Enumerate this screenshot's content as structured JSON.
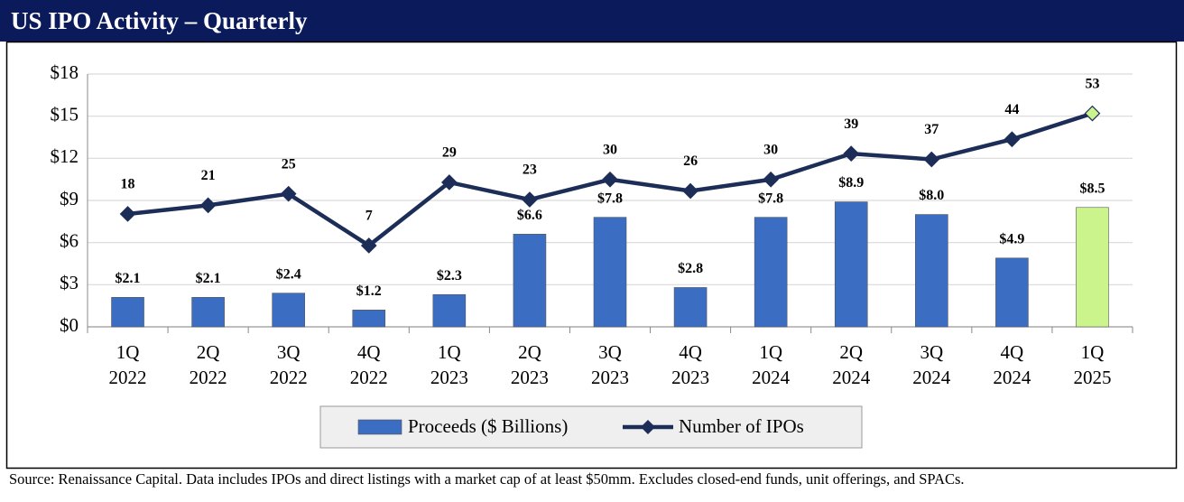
{
  "chart_data": {
    "type": "bar_line",
    "title": "US IPO Activity – Quarterly",
    "source": "Source: Renaissance Capital. Data includes IPOs and direct listings with a market cap of at least $50mm. Excludes closed-end funds, unit offerings, and SPACs.",
    "categories": [
      "1Q 2022",
      "2Q 2022",
      "3Q 2022",
      "4Q 2022",
      "1Q 2023",
      "2Q 2023",
      "3Q 2023",
      "4Q 2023",
      "1Q 2024",
      "2Q 2024",
      "3Q 2024",
      "4Q 2024",
      "1Q 2025"
    ],
    "ylim": [
      0,
      18
    ],
    "yticks": [
      {
        "value": 0,
        "label": "$0"
      },
      {
        "value": 3,
        "label": "$3"
      },
      {
        "value": 6,
        "label": "$6"
      },
      {
        "value": 9,
        "label": "$9"
      },
      {
        "value": 12,
        "label": "$12"
      },
      {
        "value": 15,
        "label": "$15"
      },
      {
        "value": 18,
        "label": "$18"
      }
    ],
    "y2lim": [
      -21.3,
      66.7
    ],
    "grid": true,
    "series": [
      {
        "name": "Proceeds ($ Billions)",
        "type": "bar",
        "color": "#3b6ec2",
        "colors": [
          "#3b6ec2",
          "#3b6ec2",
          "#3b6ec2",
          "#3b6ec2",
          "#3b6ec2",
          "#3b6ec2",
          "#3b6ec2",
          "#3b6ec2",
          "#3b6ec2",
          "#3b6ec2",
          "#3b6ec2",
          "#3b6ec2",
          "#ccf48c"
        ],
        "values": [
          2.1,
          2.1,
          2.4,
          1.2,
          2.3,
          6.6,
          7.8,
          2.8,
          7.8,
          8.9,
          8.0,
          4.9,
          8.5
        ],
        "value_labels": [
          "$2.1",
          "$2.1",
          "$2.4",
          "$1.2",
          "$2.3",
          "$6.6",
          "$7.8",
          "$2.8",
          "$7.8",
          "$8.9",
          "$8.0",
          "$4.9",
          "$8.5"
        ]
      },
      {
        "name": "Number of IPOs",
        "type": "line",
        "axis": "y2",
        "color": "#1c2d57",
        "marker_colors": [
          "#1c2d57",
          "#1c2d57",
          "#1c2d57",
          "#1c2d57",
          "#1c2d57",
          "#1c2d57",
          "#1c2d57",
          "#1c2d57",
          "#1c2d57",
          "#1c2d57",
          "#1c2d57",
          "#1c2d57",
          "#ccf48c"
        ],
        "values": [
          18,
          21,
          25,
          7,
          29,
          23,
          30,
          26,
          30,
          39,
          37,
          44,
          53
        ]
      }
    ]
  }
}
